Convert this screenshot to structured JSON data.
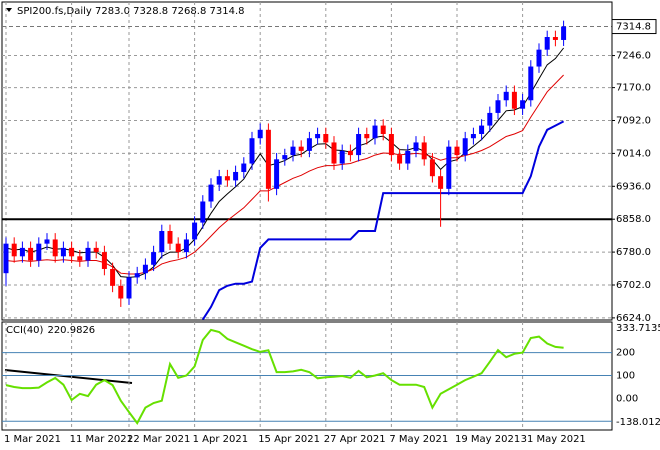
{
  "chart_data": {
    "type": "candlestick",
    "title": "SPI200.fs,Daily  7283.0 7328.8 7268.8 7314.8",
    "categories": [
      "1 Mar 2021",
      null,
      null,
      null,
      null,
      null,
      null,
      null,
      "11 Mar 2021",
      null,
      null,
      null,
      null,
      null,
      null,
      "22 Mar 2021",
      null,
      null,
      null,
      null,
      null,
      null,
      null,
      "1 Apr 2021",
      null,
      null,
      null,
      null,
      null,
      null,
      null,
      "15 Apr 2021",
      null,
      null,
      null,
      null,
      null,
      null,
      null,
      "27 Apr 2021",
      null,
      null,
      null,
      null,
      null,
      null,
      null,
      "7 May 2021",
      null,
      null,
      null,
      null,
      null,
      null,
      null,
      "19 May 2021",
      null,
      null,
      null,
      null,
      null,
      null,
      null,
      "31 May 2021",
      null,
      null,
      null,
      null,
      null
    ],
    "open": [
      6730,
      6800,
      6770,
      6790,
      6760,
      6800,
      6810,
      6770,
      6790,
      6770,
      6760,
      6790,
      6780,
      6740,
      6700,
      6670,
      6720,
      6730,
      6750,
      6780,
      6830,
      6800,
      6780,
      6810,
      6850,
      6900,
      6940,
      6960,
      6950,
      6970,
      6990,
      7050,
      7070,
      6930,
      7000,
      7010,
      7030,
      7020,
      7050,
      7060,
      7040,
      6990,
      7020,
      7010,
      7060,
      7050,
      7080,
      7060,
      7010,
      6990,
      7020,
      7040,
      7000,
      6960,
      6930,
      7030,
      7010,
      7050,
      7060,
      7080,
      7110,
      7140,
      7160,
      7120,
      7140,
      7220,
      7260,
      7290,
      7283
    ],
    "high": [
      6815,
      6815,
      6805,
      6805,
      6815,
      6825,
      6825,
      6805,
      6805,
      6785,
      6805,
      6805,
      6795,
      6755,
      6715,
      6735,
      6745,
      6765,
      6795,
      6845,
      6845,
      6815,
      6825,
      6865,
      6915,
      6955,
      6975,
      6975,
      6985,
      7005,
      7065,
      7085,
      7085,
      7015,
      7025,
      7045,
      7045,
      7065,
      7075,
      7075,
      7055,
      7035,
      7035,
      7075,
      7075,
      7095,
      7095,
      7075,
      7025,
      7035,
      7055,
      7055,
      7015,
      6975,
      7045,
      7045,
      7065,
      7075,
      7095,
      7125,
      7155,
      7175,
      7175,
      7155,
      7235,
      7275,
      7305,
      7305,
      7328.8
    ],
    "low": [
      6700,
      6755,
      6755,
      6745,
      6745,
      6785,
      6755,
      6755,
      6755,
      6745,
      6745,
      6765,
      6725,
      6685,
      6650,
      6655,
      6705,
      6715,
      6735,
      6765,
      6785,
      6765,
      6765,
      6795,
      6835,
      6885,
      6925,
      6935,
      6935,
      6955,
      6975,
      7035,
      6900,
      6915,
      6985,
      6995,
      7005,
      7005,
      7035,
      7025,
      6975,
      6975,
      6995,
      6995,
      7035,
      7035,
      7045,
      6995,
      6975,
      6975,
      7005,
      6985,
      6945,
      6840,
      6915,
      6995,
      6995,
      7035,
      7045,
      7065,
      7095,
      7125,
      7105,
      7105,
      7125,
      7205,
      7245,
      7268,
      7268.8
    ],
    "close": [
      6800,
      6770,
      6790,
      6760,
      6800,
      6810,
      6770,
      6790,
      6770,
      6760,
      6790,
      6780,
      6740,
      6700,
      6670,
      6720,
      6730,
      6750,
      6780,
      6830,
      6800,
      6780,
      6810,
      6850,
      6900,
      6940,
      6960,
      6950,
      6970,
      6990,
      7050,
      7070,
      6930,
      7000,
      7010,
      7030,
      7020,
      7050,
      7060,
      7040,
      6990,
      7020,
      7010,
      7060,
      7050,
      7080,
      7060,
      7010,
      6990,
      7020,
      7040,
      7000,
      6960,
      6930,
      7030,
      7010,
      7050,
      7060,
      7080,
      7110,
      7140,
      7160,
      7120,
      7140,
      7220,
      7260,
      7290,
      7283,
      7314.8
    ],
    "up_color": "#0000ff",
    "down_color": "#ff0000",
    "ylim": [
      6619,
      7373
    ],
    "yticks": [
      {
        "value": 7246,
        "label": "7246.0"
      },
      {
        "value": 7170,
        "label": "7170.0"
      },
      {
        "value": 7092,
        "label": "7092.0"
      },
      {
        "value": 7014,
        "label": "7014.0"
      },
      {
        "value": 6936,
        "label": "6936.0"
      },
      {
        "value": 6858,
        "label": "6858.0"
      },
      {
        "value": 6780,
        "label": "6780.0"
      },
      {
        "value": 6702,
        "label": "6702.0"
      },
      {
        "value": 6624,
        "label": "6624.0"
      }
    ],
    "grid": true,
    "last_price": {
      "value": 7314.8,
      "label": "7314.8"
    },
    "hlines": [
      6858
    ],
    "series": [
      {
        "color": "#000000",
        "values": [
          6790,
          6785,
          6787,
          6780,
          6785,
          6792,
          6787,
          6788,
          6784,
          6778,
          6780,
          6780,
          6768,
          6749,
          6722,
          6720,
          6722,
          6730,
          6745,
          6770,
          6780,
          6780,
          6790,
          6810,
          6840,
          6872,
          6900,
          6918,
          6935,
          6953,
          6985,
          7013,
          6985,
          6990,
          6997,
          7008,
          7012,
          7025,
          7036,
          7037,
          7022,
          7021,
          7017,
          7032,
          7038,
          7052,
          7055,
          7040,
          7023,
          7022,
          7028,
          7019,
          6999,
          6976,
          6994,
          6999,
          7016,
          7031,
          7047,
          7068,
          7092,
          7115,
          7117,
          7125,
          7157,
          7191,
          7224,
          7239,
          7264
        ]
      },
      {
        "color": "#e00000",
        "values": [
          6760,
          6758,
          6760,
          6758,
          6760,
          6762,
          6760,
          6762,
          6760,
          6758,
          6760,
          6760,
          6755,
          6745,
          6730,
          6728,
          6728,
          6732,
          6740,
          6752,
          6758,
          6762,
          6768,
          6780,
          6798,
          6818,
          6838,
          6855,
          6870,
          6885,
          6905,
          6925,
          6925,
          6935,
          6945,
          6955,
          6962,
          6972,
          6980,
          6985,
          6985,
          6988,
          6990,
          6997,
          7002,
          7010,
          7015,
          7014,
          7011,
          7012,
          7014,
          7012,
          7006,
          6998,
          7003,
          7004,
          7009,
          7014,
          7021,
          7030,
          7042,
          7054,
          7060,
          7068,
          7100,
          7130,
          7160,
          7180,
          7200
        ]
      },
      {
        "color": "#0000dd",
        "values": [
          null,
          null,
          null,
          null,
          null,
          null,
          null,
          null,
          null,
          null,
          null,
          null,
          null,
          null,
          null,
          null,
          null,
          null,
          null,
          null,
          null,
          null,
          null,
          null,
          6620,
          6650,
          6690,
          6700,
          6705,
          6705,
          6710,
          6790,
          6810,
          6810,
          6810,
          6810,
          6810,
          6810,
          6810,
          6810,
          6810,
          6810,
          6810,
          6830,
          6830,
          6830,
          6920,
          6920,
          6920,
          6920,
          6920,
          6920,
          6920,
          6920,
          6920,
          6920,
          6920,
          6920,
          6920,
          6920,
          6920,
          6920,
          6920,
          6920,
          6960,
          7030,
          7070,
          7080,
          7090
        ]
      }
    ],
    "indicator": {
      "type": "line",
      "title": "CCI(40)",
      "color": "#66e000",
      "values": [
        58,
        50,
        45,
        45,
        47,
        70,
        89,
        60,
        -7,
        20,
        10,
        60,
        80,
        58,
        -10,
        -60,
        -108,
        -40,
        -20,
        -10,
        150,
        90,
        100,
        140,
        255,
        299,
        290,
        260,
        245,
        230,
        215,
        203,
        210,
        115,
        115,
        118,
        125,
        115,
        88,
        92,
        95,
        98,
        90,
        120,
        92,
        100,
        110,
        80,
        60,
        60,
        60,
        50,
        -40,
        20,
        40,
        60,
        80,
        95,
        110,
        160,
        211,
        180,
        195,
        200,
        264,
        270,
        240,
        225,
        220.9826
      ],
      "ylim": [
        -138.0124,
        333.7135
      ],
      "yticks": [
        333.7135,
        200,
        100,
        {
          "value": 0,
          "label": "0.00"
        },
        -138.0124
      ],
      "levels": [
        200,
        100,
        -100
      ],
      "level_color": "#4682b4"
    }
  }
}
